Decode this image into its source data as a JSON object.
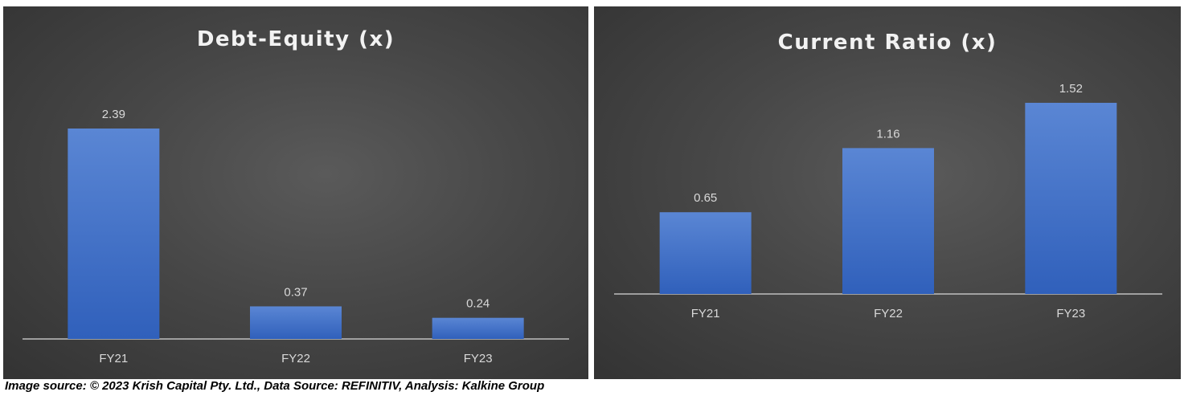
{
  "chart_data": [
    {
      "type": "bar",
      "title": "Debt-Equity (x)",
      "categories": [
        "FY21",
        "FY22",
        "FY23"
      ],
      "values": [
        2.39,
        0.37,
        0.24
      ],
      "data_labels": [
        "2.39",
        "0.37",
        "0.24"
      ],
      "ylim": [
        0,
        2.39
      ],
      "grid": false,
      "legend": "none",
      "bar_color": "#4472c4"
    },
    {
      "type": "bar",
      "title": "Current Ratio (x)",
      "categories": [
        "FY21",
        "FY22",
        "FY23"
      ],
      "values": [
        0.65,
        1.16,
        1.52
      ],
      "data_labels": [
        "0.65",
        "1.16",
        "1.52"
      ],
      "ylim": [
        0,
        1.52
      ],
      "grid": false,
      "legend": "none",
      "bar_color": "#4472c4"
    }
  ],
  "footer": {
    "source_text": "Image source: © 2023 Krish Capital Pty. Ltd., Data Source: REFINITIV, Analysis: Kalkine Group"
  }
}
